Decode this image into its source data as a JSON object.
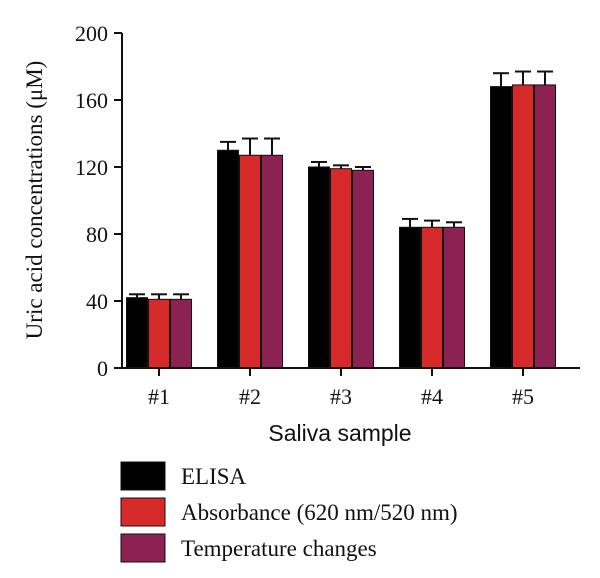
{
  "chart_data": {
    "type": "bar",
    "xlabel": "Saliva sample",
    "ylabel": "Uric acid concentrations (μM)",
    "categories": [
      "#1",
      "#2",
      "#3",
      "#4",
      "#5"
    ],
    "ylim": [
      0,
      200
    ],
    "yticks": [
      "0",
      "40",
      "80",
      "120",
      "160",
      "200"
    ],
    "grid": false,
    "legend_position": "bottom",
    "series": [
      {
        "name": "ELISA",
        "color": "#000000",
        "values": [
          42,
          130,
          120,
          84,
          168
        ],
        "errors": [
          2,
          5,
          3,
          5,
          8
        ]
      },
      {
        "name": "Absorbance (620 nm/520 nm)",
        "color": "#d62a2a",
        "values": [
          41,
          127,
          119,
          84,
          169
        ],
        "errors": [
          3,
          10,
          2,
          4,
          8
        ]
      },
      {
        "name": "Temperature changes",
        "color": "#8b2252",
        "values": [
          41,
          127,
          118,
          84,
          169
        ],
        "errors": [
          3,
          10,
          2,
          3,
          8
        ]
      }
    ]
  }
}
